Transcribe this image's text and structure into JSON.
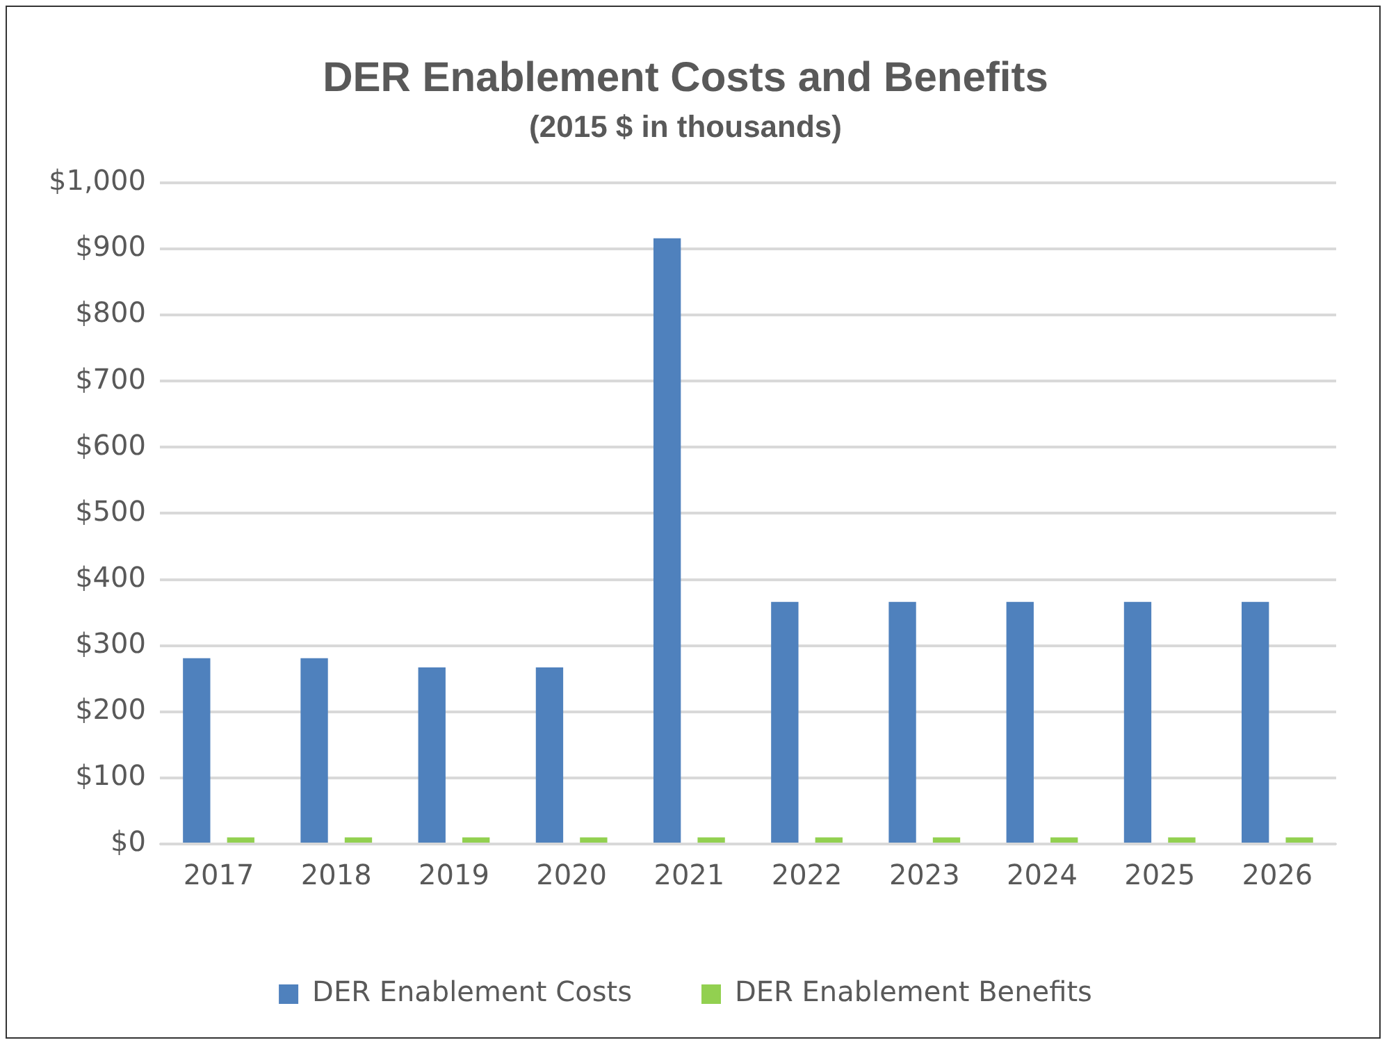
{
  "chart_data": {
    "type": "bar",
    "title": "DER Enablement Costs and Benefits",
    "subtitle": "(2015 $ in thousands)",
    "categories": [
      "2017",
      "2018",
      "2019",
      "2020",
      "2021",
      "2022",
      "2023",
      "2024",
      "2025",
      "2026"
    ],
    "series": [
      {
        "name": "DER Enablement Costs",
        "color": "#4f81bd",
        "values": [
          281,
          281,
          267,
          267,
          916,
          366,
          366,
          366,
          366,
          366
        ]
      },
      {
        "name": "DER Enablement Benefits",
        "color": "#92d050",
        "values": [
          10,
          10,
          10,
          10,
          10,
          10,
          10,
          10,
          10,
          10
        ]
      }
    ],
    "ylim": [
      0,
      1000
    ],
    "yticks": [
      {
        "value": 0,
        "label": "$0"
      },
      {
        "value": 100,
        "label": "$100"
      },
      {
        "value": 200,
        "label": "$200"
      },
      {
        "value": 300,
        "label": "$300"
      },
      {
        "value": 400,
        "label": "$400"
      },
      {
        "value": 500,
        "label": "$500"
      },
      {
        "value": 600,
        "label": "$600"
      },
      {
        "value": 700,
        "label": "$700"
      },
      {
        "value": 800,
        "label": "$800"
      },
      {
        "value": 900,
        "label": "$900"
      },
      {
        "value": 1000,
        "label": "$1,000"
      }
    ],
    "grid": "y",
    "legend": "bottom"
  }
}
